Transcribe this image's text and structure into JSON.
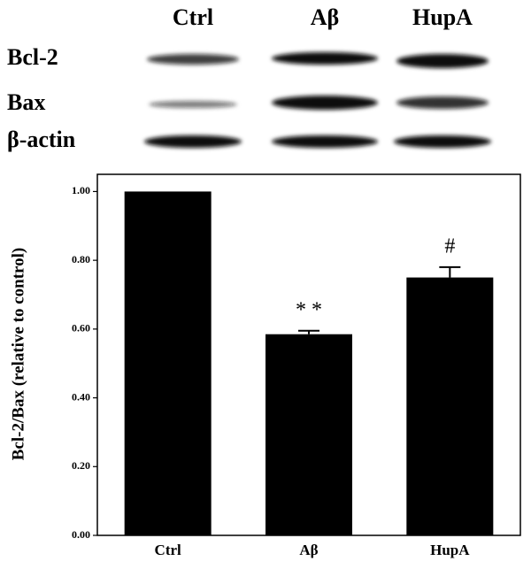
{
  "blot": {
    "columns": [
      "Ctrl",
      "Aβ",
      "HupA"
    ],
    "rows": [
      "Bcl-2",
      "Bax",
      "β-actin"
    ]
  },
  "chart_data": {
    "type": "bar",
    "y_label": "Bcl-2/Bax (relative to control)",
    "categories": [
      "Ctrl",
      "Aβ",
      "HupA"
    ],
    "values": [
      1.0,
      0.585,
      0.75
    ],
    "errors": [
      0,
      0.01,
      0.03
    ],
    "annotations": [
      "",
      "* *",
      "#"
    ],
    "color": "#000000",
    "ylim": [
      0,
      1.05
    ],
    "yticks": [
      {
        "value": 0,
        "label": "0.00"
      },
      {
        "value": 0.2,
        "label": "0.20"
      },
      {
        "value": 0.4,
        "label": "0.40"
      },
      {
        "value": 0.6,
        "label": "0.60"
      },
      {
        "value": 0.8,
        "label": "0.80"
      },
      {
        "value": 1.0,
        "label": "1.00"
      }
    ]
  }
}
